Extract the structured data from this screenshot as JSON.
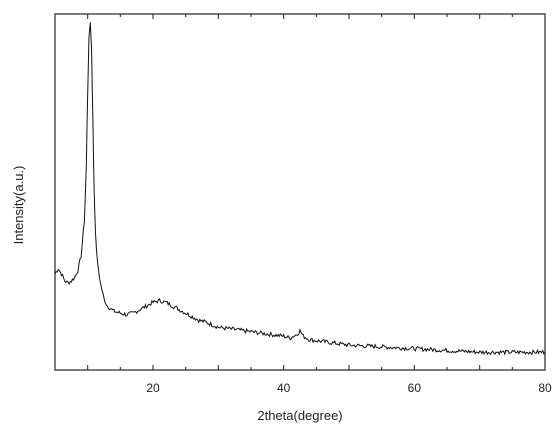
{
  "chart_data": {
    "type": "line",
    "xlabel": "2theta(degree)",
    "ylabel": "Intensity(a.u.)",
    "xlim": [
      5,
      80
    ],
    "ylim": [
      0,
      1
    ],
    "x_ticks": [
      20,
      40,
      60,
      80
    ],
    "y_ticks_labeled": false,
    "grid": false,
    "legend": "none",
    "line_color": "#111111",
    "series": [
      {
        "x": [
          5,
          5.5,
          6,
          6.5,
          7,
          7.5,
          8,
          8.5,
          9,
          9.5,
          9.8,
          10,
          10.2,
          10.4,
          10.6,
          10.8,
          11,
          11.2,
          11.5,
          12,
          12.5,
          13,
          14,
          15,
          16,
          17,
          18,
          19,
          20,
          21,
          22,
          23,
          24,
          25,
          26,
          27,
          28,
          30,
          32,
          34,
          36,
          38,
          40,
          41,
          42,
          42.5,
          43,
          44,
          46,
          48,
          50,
          55,
          60,
          65,
          70,
          75,
          80
        ],
        "y": [
          0.27,
          0.285,
          0.27,
          0.25,
          0.245,
          0.25,
          0.26,
          0.28,
          0.32,
          0.42,
          0.58,
          0.78,
          0.93,
          0.98,
          0.9,
          0.7,
          0.5,
          0.38,
          0.3,
          0.24,
          0.2,
          0.18,
          0.165,
          0.16,
          0.155,
          0.16,
          0.17,
          0.18,
          0.19,
          0.195,
          0.19,
          0.18,
          0.17,
          0.16,
          0.15,
          0.14,
          0.135,
          0.12,
          0.115,
          0.11,
          0.105,
          0.1,
          0.095,
          0.09,
          0.1,
          0.11,
          0.095,
          0.085,
          0.08,
          0.075,
          0.07,
          0.065,
          0.06,
          0.055,
          0.05,
          0.05,
          0.05
        ]
      }
    ]
  }
}
